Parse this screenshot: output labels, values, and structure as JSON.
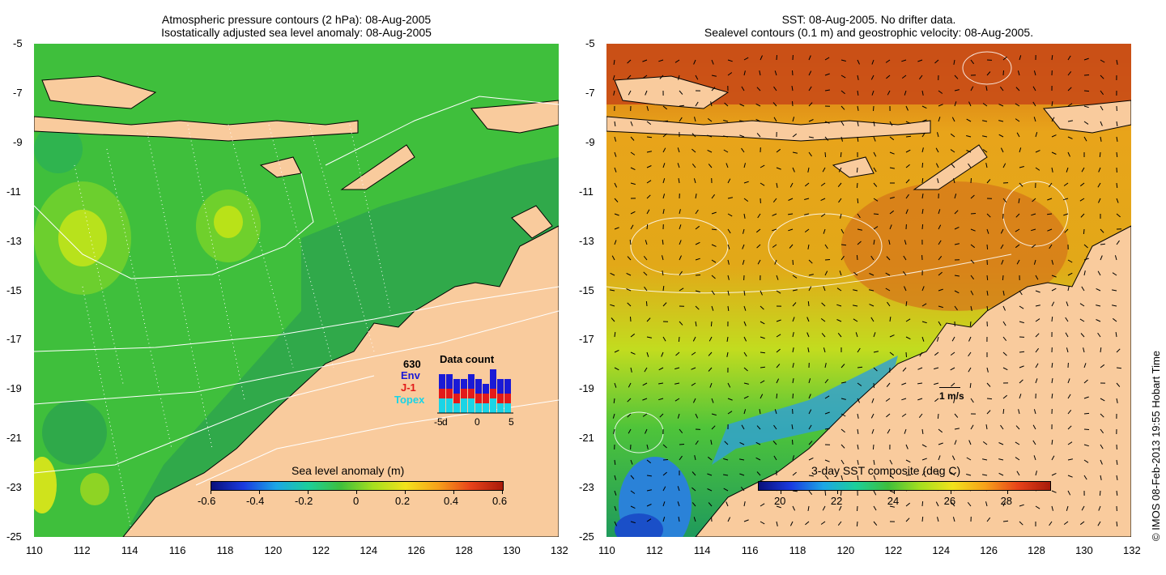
{
  "left_map": {
    "title_line1": "Atmospheric pressure contours (2 hPa): 08-Aug-2005",
    "title_line2": "Isostatically adjusted sea level anomaly: 08-Aug-2005",
    "colorbar": {
      "label": "Sea level anomaly (m)",
      "ticks": [
        "-0.6",
        "-0.4",
        "-0.2",
        "0",
        "0.2",
        "0.4",
        "0.6"
      ],
      "range": [
        -0.6,
        0.6
      ]
    },
    "inset": {
      "title": "Data count",
      "count": "630",
      "legend": [
        {
          "label": "Env",
          "color": "#1a1ad6"
        },
        {
          "label": "J-1",
          "color": "#e21a1a"
        },
        {
          "label": "Topex",
          "color": "#1ad4e6"
        }
      ],
      "x_ticks": [
        "-5",
        "d",
        "0",
        "5"
      ],
      "chart_data": {
        "type": "bar",
        "stacked": true,
        "x": [
          -5,
          -4,
          -3,
          -2,
          -1,
          0,
          1,
          2,
          3,
          4
        ],
        "series": [
          {
            "name": "Topex",
            "values": [
              3,
              3,
              2,
              3,
              3,
              2,
              2,
              3,
              2,
              2
            ]
          },
          {
            "name": "J-1",
            "values": [
              2,
              2,
              2,
              2,
              2,
              2,
              2,
              2,
              2,
              2
            ]
          },
          {
            "name": "Env",
            "values": [
              3,
              3,
              3,
              2,
              3,
              3,
              2,
              4,
              3,
              3
            ]
          }
        ]
      }
    }
  },
  "right_map": {
    "title_line1": "SST: 08-Aug-2005. No drifter data.",
    "title_line2": "Sealevel contours (0.1 m) and geostrophic velocity: 08-Aug-2005.",
    "colorbar": {
      "label": "3-day SST composite (deg C)",
      "ticks": [
        "20",
        "22",
        "24",
        "26",
        "28"
      ],
      "range": [
        19.2,
        29.5
      ]
    },
    "velocity_scale": "1 m/s"
  },
  "axes": {
    "lat_ticks": [
      "-5",
      "-7",
      "-9",
      "-11",
      "-13",
      "-15",
      "-17",
      "-19",
      "-21",
      "-23",
      "-25"
    ],
    "lon_ticks": [
      "110",
      "112",
      "114",
      "116",
      "118",
      "120",
      "122",
      "124",
      "126",
      "128",
      "130",
      "132"
    ],
    "lat_range": [
      -25,
      -5
    ],
    "lon_range": [
      110,
      132
    ]
  },
  "credit": "© IMOS 08-Feb-2013 19:55 Hobart Time",
  "colors": {
    "land": "#f9cb9d",
    "sla_base": "#3dbe3a",
    "sst_cold": "#1a5bd6",
    "sst_warm": "#c94d16"
  }
}
